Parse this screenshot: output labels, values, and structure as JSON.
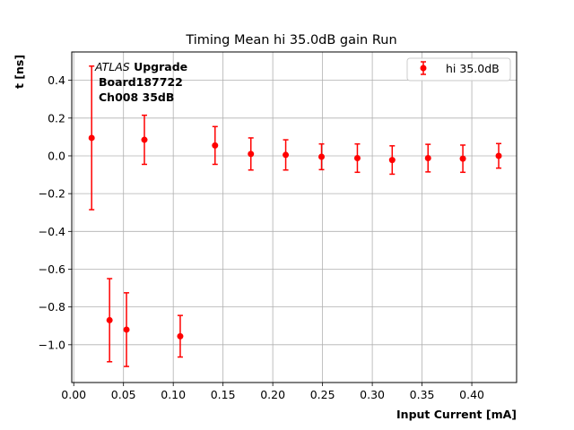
{
  "chart_data": {
    "type": "scatter",
    "title": "Timing Mean hi 35.0dB gain Run",
    "xlabel": "Input Current [mA]",
    "ylabel": "t [ns]",
    "xlim": [
      -0.002,
      0.445
    ],
    "ylim": [
      -1.2,
      0.55
    ],
    "xticks": [
      "0.00",
      "0.05",
      "0.10",
      "0.15",
      "0.20",
      "0.25",
      "0.30",
      "0.35",
      "0.40"
    ],
    "yticks": [
      "0.4",
      "0.2",
      "0.0",
      "−0.2",
      "−0.4",
      "−0.6",
      "−0.8",
      "−1.0"
    ],
    "grid": true,
    "legend_position": "top-right",
    "series": [
      {
        "name": "hi 35.0dB",
        "color": "#ff0000",
        "marker": "circle",
        "points": [
          {
            "x": 0.018,
            "y": 0.095,
            "yerr": 0.38
          },
          {
            "x": 0.036,
            "y": -0.87,
            "yerr": 0.22
          },
          {
            "x": 0.053,
            "y": -0.92,
            "yerr": 0.195
          },
          {
            "x": 0.071,
            "y": 0.085,
            "yerr": 0.13
          },
          {
            "x": 0.107,
            "y": -0.955,
            "yerr": 0.11
          },
          {
            "x": 0.142,
            "y": 0.055,
            "yerr": 0.1
          },
          {
            "x": 0.178,
            "y": 0.01,
            "yerr": 0.085
          },
          {
            "x": 0.213,
            "y": 0.005,
            "yerr": 0.08
          },
          {
            "x": 0.249,
            "y": -0.005,
            "yerr": 0.068
          },
          {
            "x": 0.285,
            "y": -0.012,
            "yerr": 0.075
          },
          {
            "x": 0.32,
            "y": -0.022,
            "yerr": 0.075
          },
          {
            "x": 0.356,
            "y": -0.012,
            "yerr": 0.073
          },
          {
            "x": 0.391,
            "y": -0.015,
            "yerr": 0.072
          },
          {
            "x": 0.427,
            "y": 0.0,
            "yerr": 0.065
          }
        ]
      }
    ],
    "annotation": {
      "line1_italic": "ATLAS",
      "line1_bold": " Upgrade",
      "line2": "Board187722",
      "line3": "Ch008 35dB"
    }
  }
}
